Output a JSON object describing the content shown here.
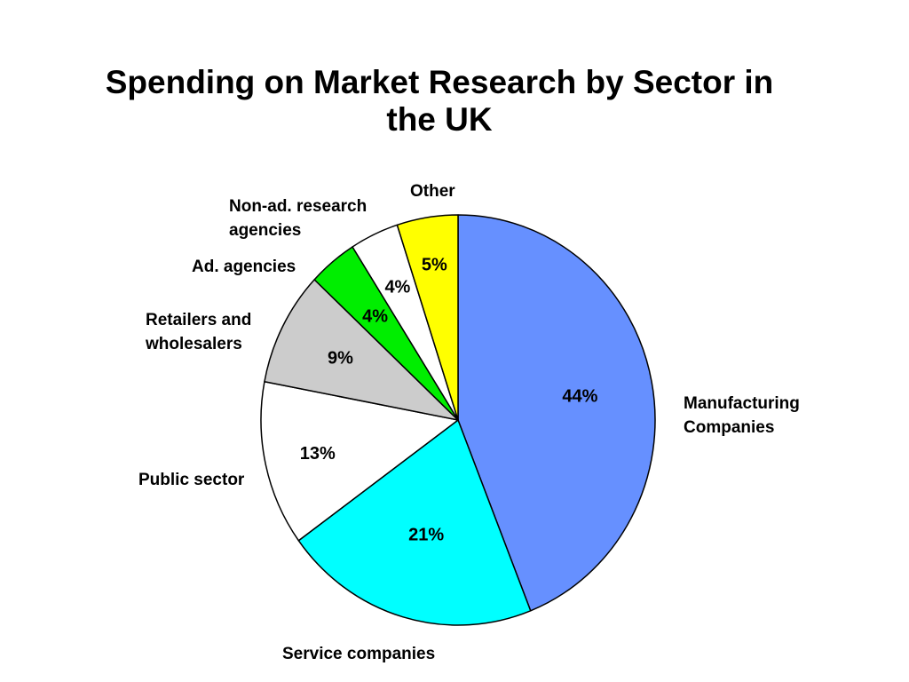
{
  "title": {
    "line1": "Spending on Market Research by Sector in",
    "line2": "the UK"
  },
  "chart_data": {
    "type": "pie",
    "title": "Spending on Market Research by Sector in the UK",
    "slices": [
      {
        "label": [
          "Manufacturing",
          "Companies"
        ],
        "value": 44,
        "display": "44%",
        "color": "#6690ff"
      },
      {
        "label": [
          "Service companies"
        ],
        "value": 21,
        "display": "21%",
        "color": "#00ffff"
      },
      {
        "label": [
          "Public sector"
        ],
        "value": 13,
        "display": "13%",
        "color": "#ffffff"
      },
      {
        "label": [
          "Retailers and",
          "wholesalers"
        ],
        "value": 9,
        "display": "9%",
        "color": "#cccccc"
      },
      {
        "label": [
          "Ad. agencies"
        ],
        "value": 4,
        "display": "4%",
        "color": "#00ee00"
      },
      {
        "label": [
          "Non-ad. research",
          "agencies"
        ],
        "value": 4,
        "display": "4%",
        "color": "#ffffff"
      },
      {
        "label": [
          "Other"
        ],
        "value": 5,
        "display": "5%",
        "color": "#ffff00"
      }
    ]
  }
}
